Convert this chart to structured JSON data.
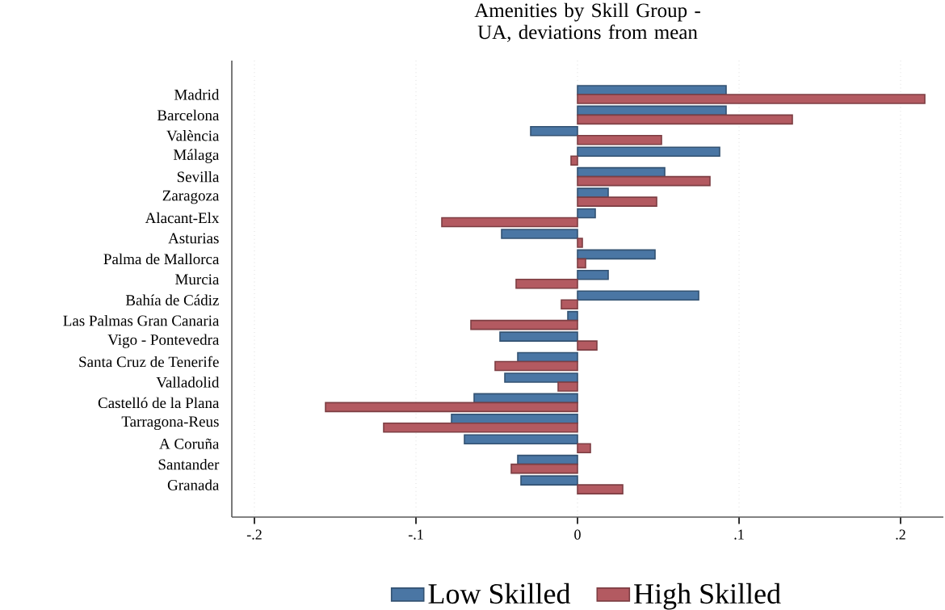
{
  "chart_data": {
    "type": "bar",
    "orientation": "horizontal",
    "title": "Amenities by Skill Group - UA, deviations from mean",
    "categories": [
      "Madrid",
      "Barcelona",
      "València",
      "Málaga",
      "Sevilla",
      "Zaragoza",
      "Alacant-Elx",
      "Asturias",
      "Palma de Mallorca",
      "Murcia",
      "Bahía de Cádiz",
      "Las Palmas Gran Canaria",
      "Vigo - Pontevedra",
      "Santa Cruz de Tenerife",
      "Valladolid",
      "Castelló de la Plana",
      "Tarragona-Reus",
      "A Coruña",
      "Santander",
      "Granada"
    ],
    "series": [
      {
        "name": "Low Skilled",
        "color": "#4a76a4",
        "values": [
          0.092,
          0.092,
          -0.029,
          0.088,
          0.054,
          0.019,
          0.011,
          -0.047,
          0.048,
          0.019,
          0.075,
          -0.006,
          -0.048,
          -0.037,
          -0.045,
          -0.064,
          -0.078,
          -0.07,
          -0.037,
          -0.035
        ]
      },
      {
        "name": "High Skilled",
        "color": "#b35a61",
        "values": [
          0.215,
          0.133,
          0.052,
          -0.004,
          0.082,
          0.049,
          -0.084,
          0.003,
          0.005,
          -0.038,
          -0.01,
          -0.066,
          0.012,
          -0.051,
          -0.012,
          -0.156,
          -0.12,
          0.008,
          -0.041,
          0.028
        ]
      }
    ],
    "xlim": [
      -0.214,
      0.2265
    ],
    "xticks": [
      {
        "value": -0.2,
        "label": "-.2"
      },
      {
        "value": -0.1,
        "label": "-.1"
      },
      0,
      {
        "value": 0.1,
        "label": ".1"
      },
      {
        "value": 0.2,
        "label": ".2"
      }
    ],
    "grid": "x",
    "legend": "bottom"
  }
}
